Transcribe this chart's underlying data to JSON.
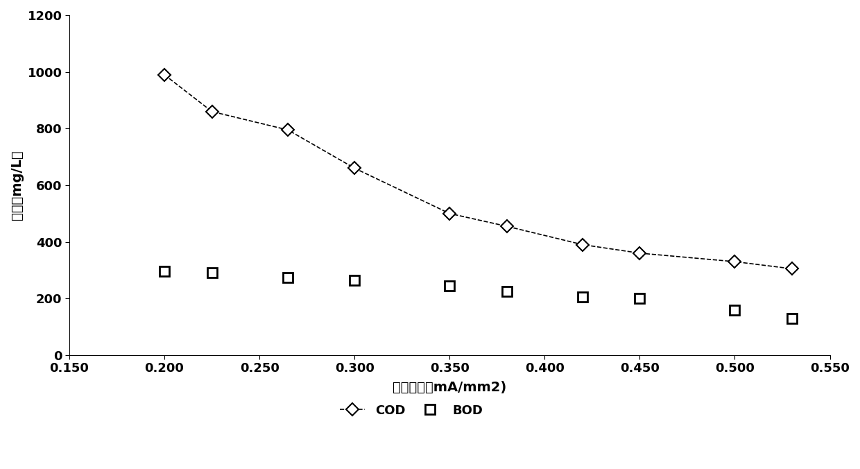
{
  "cod_x": [
    0.2,
    0.225,
    0.265,
    0.3,
    0.35,
    0.38,
    0.42,
    0.45,
    0.5,
    0.53
  ],
  "cod_y": [
    990,
    860,
    795,
    660,
    500,
    455,
    390,
    360,
    330,
    305
  ],
  "bod_x": [
    0.2,
    0.225,
    0.265,
    0.3,
    0.35,
    0.38,
    0.42,
    0.45,
    0.5,
    0.53
  ],
  "bod_y": [
    295,
    290,
    275,
    265,
    245,
    225,
    205,
    200,
    160,
    130
  ],
  "xlabel": "电流密度（mA/mm2)",
  "ylabel": "浓度（mg/L）",
  "xlim": [
    0.15,
    0.55
  ],
  "ylim": [
    0,
    1200
  ],
  "xticks": [
    0.15,
    0.2,
    0.25,
    0.3,
    0.35,
    0.4,
    0.45,
    0.5,
    0.55
  ],
  "yticks": [
    0,
    200,
    400,
    600,
    800,
    1000,
    1200
  ],
  "cod_label": "COD",
  "bod_label": "BOD",
  "line_color": "#000000",
  "background_color": "#ffffff",
  "legend_fontsize": 13,
  "axis_fontsize": 14,
  "tick_fontsize": 13,
  "marker_size_cod": 9,
  "marker_size_bod": 10,
  "linewidth": 1.2
}
